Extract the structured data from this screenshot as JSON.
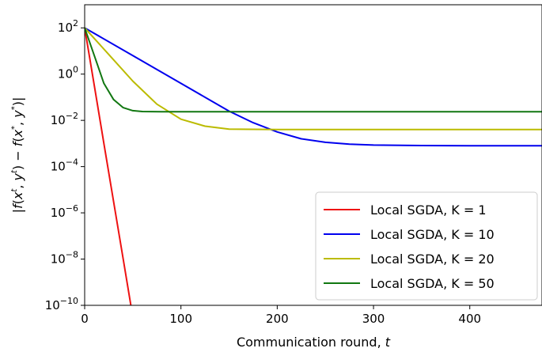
{
  "chart_data": {
    "type": "line",
    "title": "",
    "xlabel": "Communication round, t",
    "ylabel": "|f(xt, yt) − f(x*, y*)|",
    "xlim": [
      0,
      475
    ],
    "ylim_log10": [
      -10,
      3
    ],
    "yscale": "log",
    "grid": false,
    "legend_position": "lower-right",
    "x_ticks": [
      "0",
      "100",
      "200",
      "300",
      "400"
    ],
    "y_ticks": [
      "10^2",
      "10^0",
      "10^-2",
      "10^-4",
      "10^-6",
      "10^-8",
      "10^-10"
    ],
    "series": [
      {
        "name": "Local SGDA, K = 1",
        "color": "#ee1111",
        "x": [
          0,
          10,
          20,
          30,
          40,
          48
        ],
        "log10_y": [
          2.0,
          -0.5,
          -3.0,
          -5.5,
          -8.0,
          -10.0
        ]
      },
      {
        "name": "Local SGDA, K = 10",
        "color": "#0000ee",
        "x": [
          0,
          50,
          100,
          150,
          175,
          200,
          225,
          250,
          275,
          300,
          350,
          400,
          475
        ],
        "log10_y": [
          2.0,
          0.8,
          -0.4,
          -1.6,
          -2.1,
          -2.5,
          -2.8,
          -2.95,
          -3.03,
          -3.07,
          -3.09,
          -3.1,
          -3.1
        ]
      },
      {
        "name": "Local SGDA, K = 20",
        "color": "#bbbb00",
        "x": [
          0,
          25,
          50,
          75,
          100,
          125,
          150,
          200,
          250,
          300,
          400,
          475
        ],
        "log10_y": [
          2.0,
          0.85,
          -0.3,
          -1.3,
          -1.95,
          -2.25,
          -2.38,
          -2.4,
          -2.4,
          -2.4,
          -2.4,
          -2.4
        ]
      },
      {
        "name": "Local SGDA, K = 50",
        "color": "#117711",
        "x": [
          0,
          10,
          20,
          30,
          40,
          50,
          60,
          80,
          100,
          200,
          300,
          400,
          475
        ],
        "log10_y": [
          2.0,
          0.8,
          -0.4,
          -1.1,
          -1.45,
          -1.58,
          -1.62,
          -1.63,
          -1.63,
          -1.63,
          -1.63,
          -1.63,
          -1.63
        ]
      }
    ]
  }
}
